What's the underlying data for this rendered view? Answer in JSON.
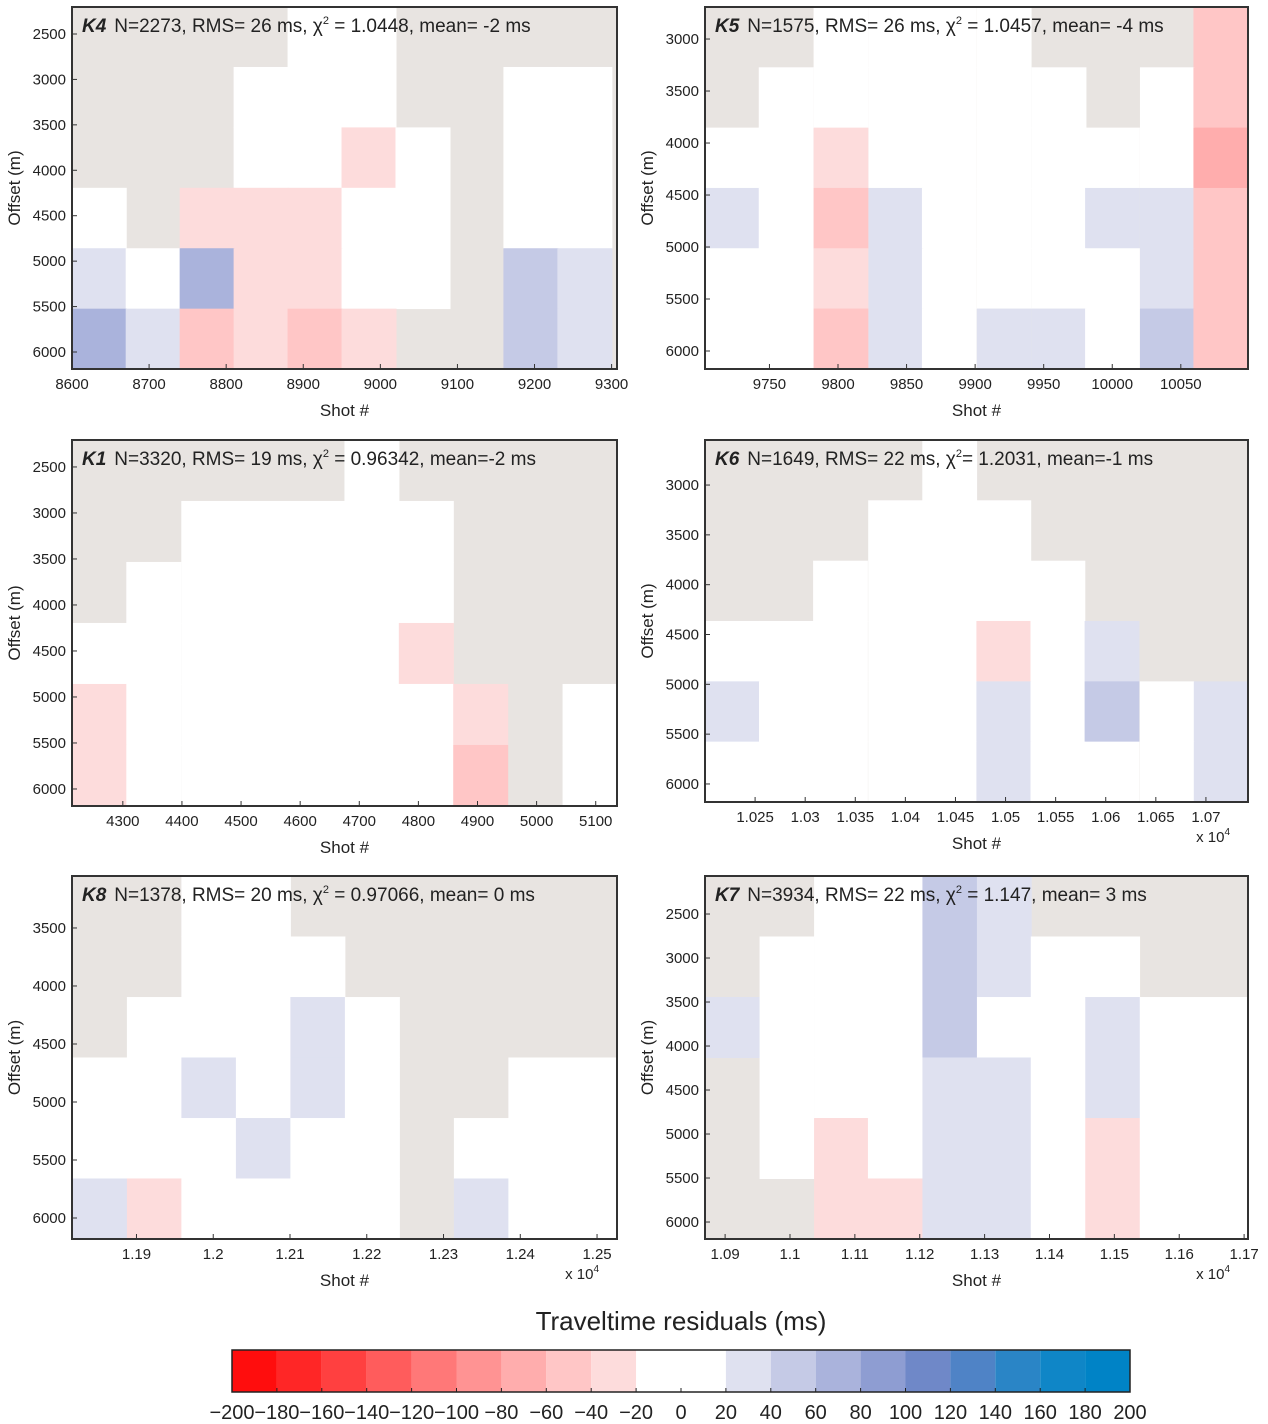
{
  "chart_data": [
    {
      "type": "heatmap",
      "panel": "K4",
      "title": "N=2273, RMS= 26 ms, χ",
      "title_exp": "2",
      "title_end": " = 1.0448, mean= -2 ms",
      "xlabel": "Shot #",
      "ylabel": "Offset (m)",
      "xlim": [
        8600,
        9307
      ],
      "ylim": [
        2203,
        6187
      ],
      "yreverse": true,
      "xticks": [
        8600,
        8700,
        8800,
        8900,
        9000,
        9100,
        9200,
        9300
      ],
      "yticks": [
        2500,
        3000,
        3500,
        4000,
        4500,
        5000,
        5500,
        6000
      ],
      "x": [
        8635,
        8705,
        8775,
        8845,
        8915,
        8985,
        9055,
        9125,
        9195,
        9265
      ],
      "y": [
        2530,
        3195,
        3860,
        4525,
        5190,
        5855
      ],
      "z": [
        [
          null,
          null,
          null,
          null,
          0,
          0,
          null,
          null,
          null,
          null
        ],
        [
          null,
          null,
          null,
          0,
          0,
          0,
          null,
          null,
          0,
          0
        ],
        [
          null,
          null,
          null,
          10,
          0,
          -30,
          0,
          null,
          0,
          0
        ],
        [
          0,
          null,
          -30,
          -40,
          -30,
          -20,
          0,
          null,
          0,
          10
        ],
        [
          30,
          0,
          60,
          -40,
          -40,
          -20,
          0,
          null,
          40,
          20
        ],
        [
          60,
          30,
          -60,
          -30,
          -50,
          -30,
          null,
          null,
          40,
          30
        ]
      ]
    },
    {
      "type": "heatmap",
      "panel": "K5",
      "title": "N=1575, RMS= 26 ms, χ",
      "title_exp": "2",
      "title_end": " = 1.0457, mean= -4 ms",
      "xlabel": "Shot #",
      "ylabel": "Offset (m)",
      "xlim": [
        9703,
        10099
      ],
      "ylim": [
        2692,
        6173
      ],
      "yreverse": true,
      "xticks": [
        9750,
        9800,
        9850,
        9900,
        9950,
        10000,
        10050
      ],
      "yticks": [
        3000,
        3500,
        4000,
        4500,
        5000,
        5500,
        6000
      ],
      "x": [
        9723,
        9762,
        9802,
        9842,
        9881,
        9921,
        9961,
        10000,
        10040,
        10079
      ],
      "y": [
        2982,
        3562,
        4142,
        4722,
        5302,
        5882
      ],
      "z": [
        [
          null,
          null,
          0,
          0,
          0,
          0,
          null,
          null,
          null,
          -50
        ],
        [
          null,
          0,
          0,
          0,
          0,
          0,
          0,
          null,
          0,
          -60
        ],
        [
          0,
          0,
          -40,
          0,
          0,
          0,
          0,
          0,
          -20,
          -70
        ],
        [
          30,
          0,
          -50,
          20,
          0,
          0,
          0,
          20,
          20,
          -60
        ],
        [
          -20,
          -20,
          -40,
          30,
          0,
          -20,
          0,
          0,
          20,
          -60
        ],
        [
          0,
          0,
          -50,
          20,
          0,
          20,
          20,
          0,
          40,
          -50
        ]
      ]
    },
    {
      "type": "heatmap",
      "panel": "K1",
      "title": "N=3320, RMS= 19 ms, χ",
      "title_exp": "2",
      "title_end": " = 0.96342, mean=-2 ms",
      "xlabel": "Shot #",
      "ylabel": "Offset (m)",
      "xlim": [
        4214,
        5136
      ],
      "ylim": [
        2207,
        6185
      ],
      "yreverse": true,
      "xticks": [
        4300,
        4400,
        4500,
        4600,
        4700,
        4800,
        4900,
        5000,
        5100
      ],
      "yticks": [
        2500,
        3000,
        3500,
        4000,
        4500,
        5000,
        5500,
        6000
      ],
      "x": [
        4260,
        4352,
        4445,
        4537,
        4629,
        4721,
        4813,
        4905,
        4997,
        5090
      ],
      "y": [
        2538,
        3201,
        3864,
        4527,
        5190,
        5853
      ],
      "z": [
        [
          null,
          null,
          null,
          null,
          null,
          0,
          null,
          null,
          null,
          null
        ],
        [
          null,
          null,
          0,
          0,
          0,
          0,
          0,
          null,
          null,
          null
        ],
        [
          null,
          0,
          0,
          0,
          0,
          0,
          0,
          null,
          null,
          null
        ],
        [
          -20,
          0,
          0,
          0,
          0,
          0,
          -30,
          null,
          null,
          null
        ],
        [
          -40,
          0,
          0,
          0,
          0,
          0,
          0,
          -40,
          null,
          -20
        ],
        [
          -40,
          0,
          0,
          0,
          10,
          0,
          0,
          -60,
          null,
          -20
        ]
      ]
    },
    {
      "type": "heatmap",
      "panel": "K6",
      "title": "N=1649, RMS= 22 ms, χ",
      "title_exp": "2",
      "title_end": "= 1.2031, mean=-1 ms",
      "xlabel": "Shot #",
      "ylabel": "Offset (m)",
      "xlim": [
        10200,
        10742
      ],
      "ylim": [
        2548,
        6181
      ],
      "yreverse": true,
      "xticks": [
        {
          "value": 10250,
          "label": "1.025"
        },
        {
          "value": 10300,
          "label": "1.03"
        },
        {
          "value": 10350,
          "label": "1.035"
        },
        {
          "value": 10400,
          "label": "1.04"
        },
        {
          "value": 10450,
          "label": "1.045"
        },
        {
          "value": 10500,
          "label": "1.05"
        },
        {
          "value": 10550,
          "label": "1.055"
        },
        {
          "value": 10600,
          "label": "1.06"
        },
        {
          "value": 10650,
          "label": "1.065"
        },
        {
          "value": 10700,
          "label": "1.07"
        }
      ],
      "x_multiplier": "x 10",
      "x_multiplier_exp": "4",
      "yticks": [
        3000,
        3500,
        4000,
        4500,
        5000,
        5500,
        6000
      ],
      "x": [
        10227,
        10281,
        10335,
        10390,
        10444,
        10498,
        10552,
        10606,
        10661,
        10715
      ],
      "y": [
        2851,
        3456,
        4062,
        4667,
        5273,
        5878
      ],
      "z": [
        [
          null,
          null,
          null,
          null,
          0,
          null,
          null,
          null,
          null,
          null
        ],
        [
          null,
          null,
          null,
          0,
          0,
          0,
          null,
          null,
          null,
          null
        ],
        [
          null,
          null,
          0,
          0,
          0,
          0,
          0,
          null,
          null,
          null
        ],
        [
          0,
          -20,
          0,
          0,
          0,
          -30,
          0,
          20,
          null,
          null
        ],
        [
          20,
          0,
          0,
          0,
          0,
          30,
          -20,
          40,
          -20,
          20
        ],
        [
          0,
          0,
          0,
          0,
          -20,
          20,
          -20,
          0,
          0,
          30
        ]
      ]
    },
    {
      "type": "heatmap",
      "panel": "K8",
      "title": "N=1378, RMS= 20 ms, χ",
      "title_exp": "2",
      "title_end": " = 0.97066, mean= 0 ms",
      "xlabel": "Shot #",
      "ylabel": "Offset (m)",
      "xlim": [
        11816,
        12526
      ],
      "ylim": [
        3052,
        6181
      ],
      "yreverse": true,
      "xticks": [
        {
          "value": 11900,
          "label": "1.19"
        },
        {
          "value": 12000,
          "label": "1.2"
        },
        {
          "value": 12100,
          "label": "1.21"
        },
        {
          "value": 12200,
          "label": "1.22"
        },
        {
          "value": 12300,
          "label": "1.23"
        },
        {
          "value": 12400,
          "label": "1.24"
        },
        {
          "value": 12500,
          "label": "1.25"
        }
      ],
      "x_multiplier": "x 10",
      "x_multiplier_exp": "4",
      "yticks": [
        3500,
        4000,
        4500,
        5000,
        5500,
        6000
      ],
      "x": [
        11852,
        11923,
        11994,
        12065,
        12136,
        12207,
        12278,
        12349,
        12420,
        12491
      ],
      "y": [
        3313,
        3834,
        4356,
        4877,
        5399,
        5920
      ],
      "z": [
        [
          null,
          null,
          0,
          0,
          null,
          null,
          null,
          null,
          null,
          null
        ],
        [
          null,
          null,
          0,
          0,
          -20,
          null,
          null,
          null,
          null,
          null
        ],
        [
          null,
          0,
          0,
          -20,
          20,
          -20,
          null,
          null,
          null,
          null
        ],
        [
          0,
          -20,
          20,
          0,
          20,
          -20,
          null,
          null,
          0,
          0
        ],
        [
          0,
          -20,
          0,
          20,
          -20,
          -20,
          null,
          0,
          0,
          0
        ],
        [
          20,
          -40,
          0,
          0,
          0,
          0,
          null,
          30,
          0,
          0
        ]
      ]
    },
    {
      "type": "heatmap",
      "panel": "K7",
      "title": "N=3934, RMS= 22 ms, χ",
      "title_exp": "2",
      "title_end": " = 1.147, mean= 3 ms",
      "xlabel": "Shot #",
      "ylabel": "Offset (m)",
      "xlim": [
        10869,
        11706
      ],
      "ylim": [
        2068,
        6193
      ],
      "yreverse": true,
      "xticks": [
        {
          "value": 10900,
          "label": "1.09"
        },
        {
          "value": 11000,
          "label": "1.1"
        },
        {
          "value": 11100,
          "label": "1.11"
        },
        {
          "value": 11200,
          "label": "1.12"
        },
        {
          "value": 11300,
          "label": "1.13"
        },
        {
          "value": 11400,
          "label": "1.14"
        },
        {
          "value": 11500,
          "label": "1.15"
        },
        {
          "value": 11600,
          "label": "1.16"
        },
        {
          "value": 11700,
          "label": "1.17"
        }
      ],
      "x_multiplier": "x 10",
      "x_multiplier_exp": "4",
      "yticks": [
        2500,
        3000,
        3500,
        4000,
        4500,
        5000,
        5500,
        6000
      ],
      "x": [
        10911,
        10995,
        11079,
        11162,
        11246,
        11330,
        11413,
        11497,
        11581,
        11665
      ],
      "y": [
        2412,
        3099,
        3787,
        4474,
        5162,
        5849
      ],
      "z": [
        [
          null,
          null,
          -20,
          0,
          40,
          20,
          null,
          null,
          null,
          null
        ],
        [
          null,
          0,
          -20,
          0,
          40,
          20,
          0,
          0,
          null,
          null
        ],
        [
          20,
          -20,
          -20,
          0,
          40,
          0,
          -20,
          20,
          0,
          0
        ],
        [
          null,
          -20,
          0,
          -20,
          30,
          20,
          -20,
          20,
          0,
          0
        ],
        [
          null,
          -20,
          -30,
          -20,
          30,
          20,
          0,
          -40,
          -20,
          0
        ],
        [
          null,
          null,
          -40,
          -30,
          20,
          30,
          0,
          -40,
          -20,
          0
        ]
      ]
    },
    {
      "type": "colorbar",
      "title": "Traveltime residuals (ms)",
      "ticks": [
        {
          "value": -200,
          "label": "−200"
        },
        {
          "value": -180,
          "label": "−180"
        },
        {
          "value": -160,
          "label": "−160"
        },
        {
          "value": -140,
          "label": "−140"
        },
        {
          "value": -120,
          "label": "−120"
        },
        {
          "value": -100,
          "label": "−100"
        },
        {
          "value": -80,
          "label": "−80"
        },
        {
          "value": -60,
          "label": "−60"
        },
        {
          "value": -40,
          "label": "−40"
        },
        {
          "value": -20,
          "label": "−20"
        },
        0,
        20,
        40,
        60,
        80,
        100,
        120,
        140,
        160,
        180,
        200
      ],
      "colors": [
        "#ff0d0d",
        "#ff2626",
        "#ff4040",
        "#ff5c5c",
        "#ff7878",
        "#ff9393",
        "#ffadad",
        "#ffc6c6",
        "#fddcdc",
        "#ffffff",
        "#ffffff",
        "#dfe1f0",
        "#c5cae6",
        "#aab3dc",
        "#8e9dd2",
        "#6f88c8",
        "#4f83c6",
        "#2a85c6",
        "#0f86c7",
        "#0083c6"
      ],
      "background": "#e8e4e1"
    }
  ]
}
